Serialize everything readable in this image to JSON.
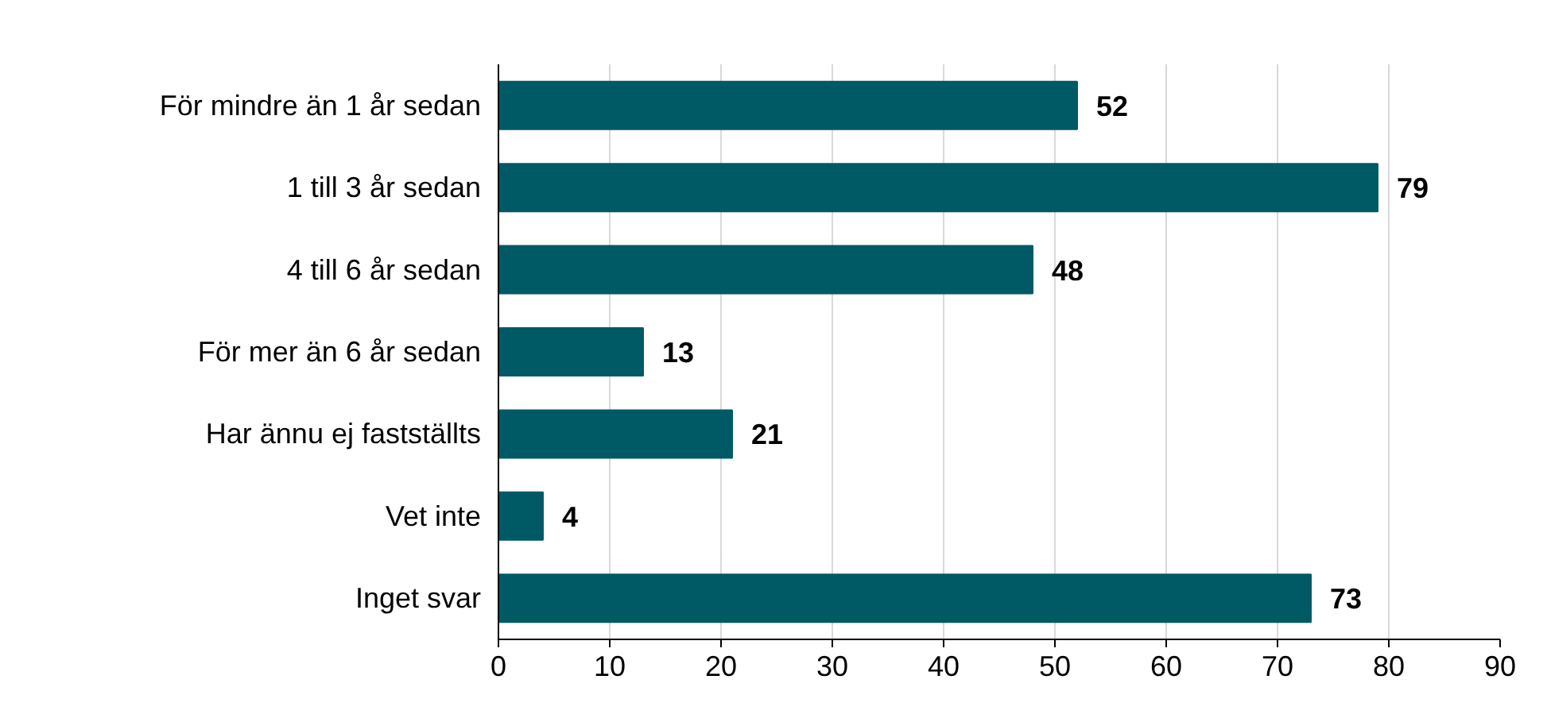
{
  "chart_data": {
    "type": "bar",
    "orientation": "horizontal",
    "categories": [
      "För mindre än 1 år sedan",
      "1 till 3 år sedan",
      "4 till 6 år sedan",
      "För mer än 6 år sedan",
      "Har ännu ej fastställts",
      "Vet inte",
      "Inget svar"
    ],
    "values": [
      52,
      79,
      48,
      13,
      21,
      4,
      73
    ],
    "color": "#005a66",
    "data_labels": true,
    "xlim": [
      0,
      90
    ],
    "xticks": [
      0,
      10,
      20,
      30,
      40,
      50,
      60,
      70,
      80,
      90
    ],
    "grid": "x"
  }
}
